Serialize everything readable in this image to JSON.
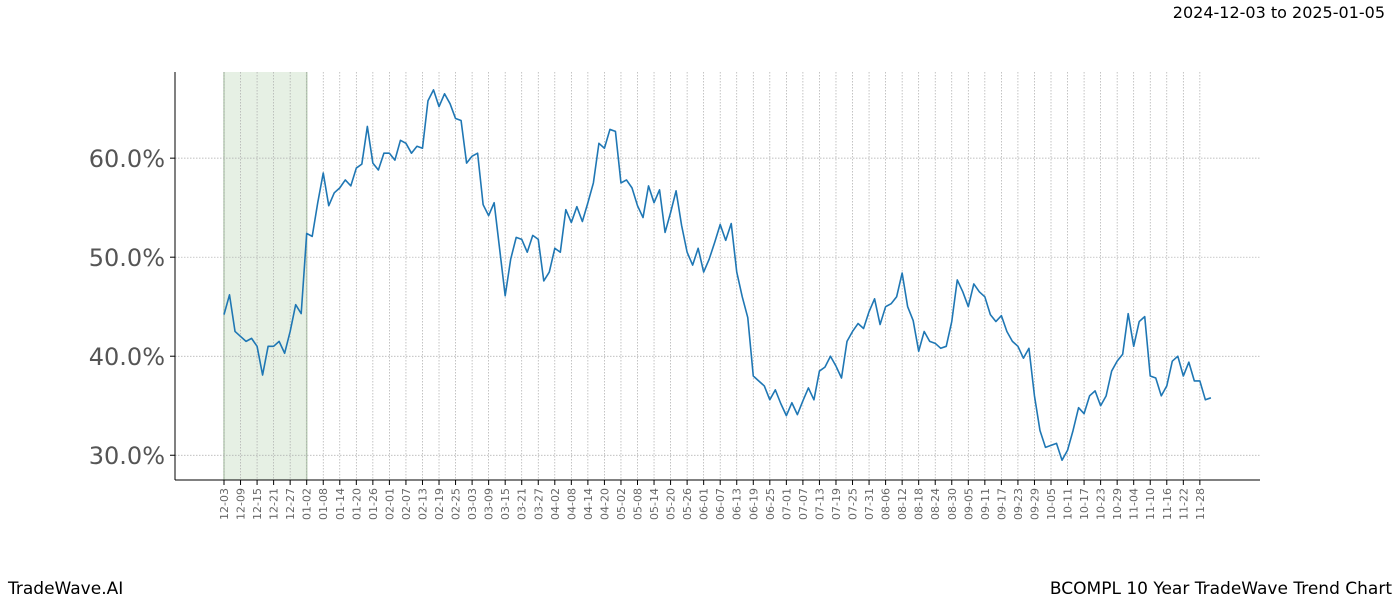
{
  "chart_data": {
    "type": "line",
    "subtitle": "2024-12-03 to 2025-01-05",
    "footer_left": "TradeWave.AI",
    "footer_right": "BCOMPL 10 Year TradeWave Trend Chart",
    "categories": [
      "12-03",
      null,
      null,
      "12-09",
      null,
      null,
      "12-15",
      null,
      null,
      "12-21",
      null,
      null,
      "12-27",
      null,
      null,
      "01-02",
      null,
      null,
      "01-08",
      null,
      null,
      "01-14",
      null,
      null,
      "01-20",
      null,
      null,
      "01-26",
      null,
      null,
      "02-01",
      null,
      null,
      "02-07",
      null,
      null,
      "02-13",
      null,
      null,
      "02-19",
      null,
      null,
      "02-25",
      null,
      null,
      "03-03",
      null,
      null,
      "03-09",
      null,
      null,
      "03-15",
      null,
      null,
      "03-21",
      null,
      null,
      "03-27",
      null,
      null,
      "04-02",
      null,
      null,
      "04-08",
      null,
      null,
      "04-14",
      null,
      null,
      "04-20",
      null,
      null,
      "05-02",
      null,
      null,
      "05-08",
      null,
      null,
      "05-14",
      null,
      null,
      "05-20",
      null,
      null,
      "05-26",
      null,
      null,
      "06-01",
      null,
      null,
      "06-07",
      null,
      null,
      "06-13",
      null,
      null,
      "06-19",
      null,
      null,
      "06-25",
      null,
      null,
      "07-01",
      null,
      null,
      "07-07",
      null,
      null,
      "07-13",
      null,
      null,
      "07-19",
      null,
      null,
      "07-25",
      null,
      null,
      "07-31",
      null,
      null,
      "08-06",
      null,
      null,
      "08-12",
      null,
      null,
      "08-18",
      null,
      null,
      "08-24",
      null,
      null,
      "08-30",
      null,
      null,
      "09-05",
      null,
      null,
      "09-11",
      null,
      null,
      "09-17",
      null,
      null,
      "09-23",
      null,
      null,
      "09-29",
      null,
      null,
      "10-05",
      null,
      null,
      "10-11",
      null,
      null,
      "10-17",
      null,
      null,
      "10-23",
      null,
      null,
      "10-29",
      null,
      null,
      "11-04",
      null,
      null,
      "11-10",
      null,
      null,
      "11-16",
      null,
      null,
      "11-22",
      null,
      null,
      "11-28",
      null,
      null
    ],
    "series": [
      {
        "color": "#1f77b4",
        "values": [
          44.2,
          46.2,
          42.5,
          42,
          41.5,
          41.8,
          41,
          38.1,
          41,
          41,
          41.5,
          40.3,
          42.5,
          45.2,
          44.3,
          52.4,
          52.1,
          55.5,
          58.5,
          55.2,
          56.5,
          57,
          57.8,
          57.2,
          59,
          59.4,
          63.2,
          59.5,
          58.8,
          60.5,
          60.5,
          59.8,
          61.8,
          61.5,
          60.5,
          61.2,
          61,
          65.8,
          66.9,
          65.2,
          66.5,
          65.5,
          64,
          63.8,
          59.5,
          60.2,
          60.5,
          55.3,
          54.2,
          55.5,
          50.8,
          46.1,
          49.8,
          52,
          51.8,
          50.5,
          52.2,
          51.8,
          47.6,
          48.5,
          50.9,
          50.5,
          54.8,
          53.5,
          55.1,
          53.6,
          55.5,
          57.5,
          61.5,
          61,
          62.9,
          62.7,
          57.5,
          57.8,
          57,
          55.2,
          54,
          57.2,
          55.5,
          56.8,
          52.5,
          54.5,
          56.7,
          53.2,
          50.5,
          49.2,
          50.9,
          48.5,
          49.8,
          51.5,
          53.3,
          51.7,
          53.4,
          48.5,
          46,
          43.9,
          38,
          37.5,
          37,
          35.6,
          36.6,
          35.2,
          34,
          35.3,
          34.1,
          35.5,
          36.8,
          35.6,
          38.5,
          38.9,
          40,
          39,
          37.8,
          41.5,
          42.5,
          43.3,
          42.8,
          44.5,
          45.8,
          43.2,
          45,
          45.3,
          46,
          48.4,
          45,
          43.6,
          40.5,
          42.5,
          41.5,
          41.3,
          40.8,
          41,
          43.5,
          47.7,
          46.5,
          45,
          47.3,
          46.5,
          46,
          44.2,
          43.5,
          44.1,
          42.5,
          41.5,
          41,
          39.8,
          40.8,
          36,
          32.5,
          30.8,
          31,
          31.2,
          29.5,
          30.5,
          32.5,
          34.8,
          34.2,
          36,
          36.5,
          35,
          36,
          38.5,
          39.5,
          40.2,
          44.3,
          41,
          43.5,
          44,
          38,
          37.8,
          36,
          37,
          39.5,
          40,
          38,
          39.4,
          37.5,
          37.5,
          35.6,
          35.8
        ]
      }
    ],
    "highlight": [
      "12-03",
      "01-02"
    ],
    "highlight_color": "#e6f0e4",
    "ylim": [
      27.5,
      68.7
    ],
    "yticks": [
      {
        "value": 30,
        "label": "30.0%"
      },
      {
        "value": 40,
        "label": "40.0%"
      },
      {
        "value": 50,
        "label": "50.0%"
      },
      {
        "value": 60,
        "label": "60.0%"
      }
    ],
    "grid": true
  }
}
